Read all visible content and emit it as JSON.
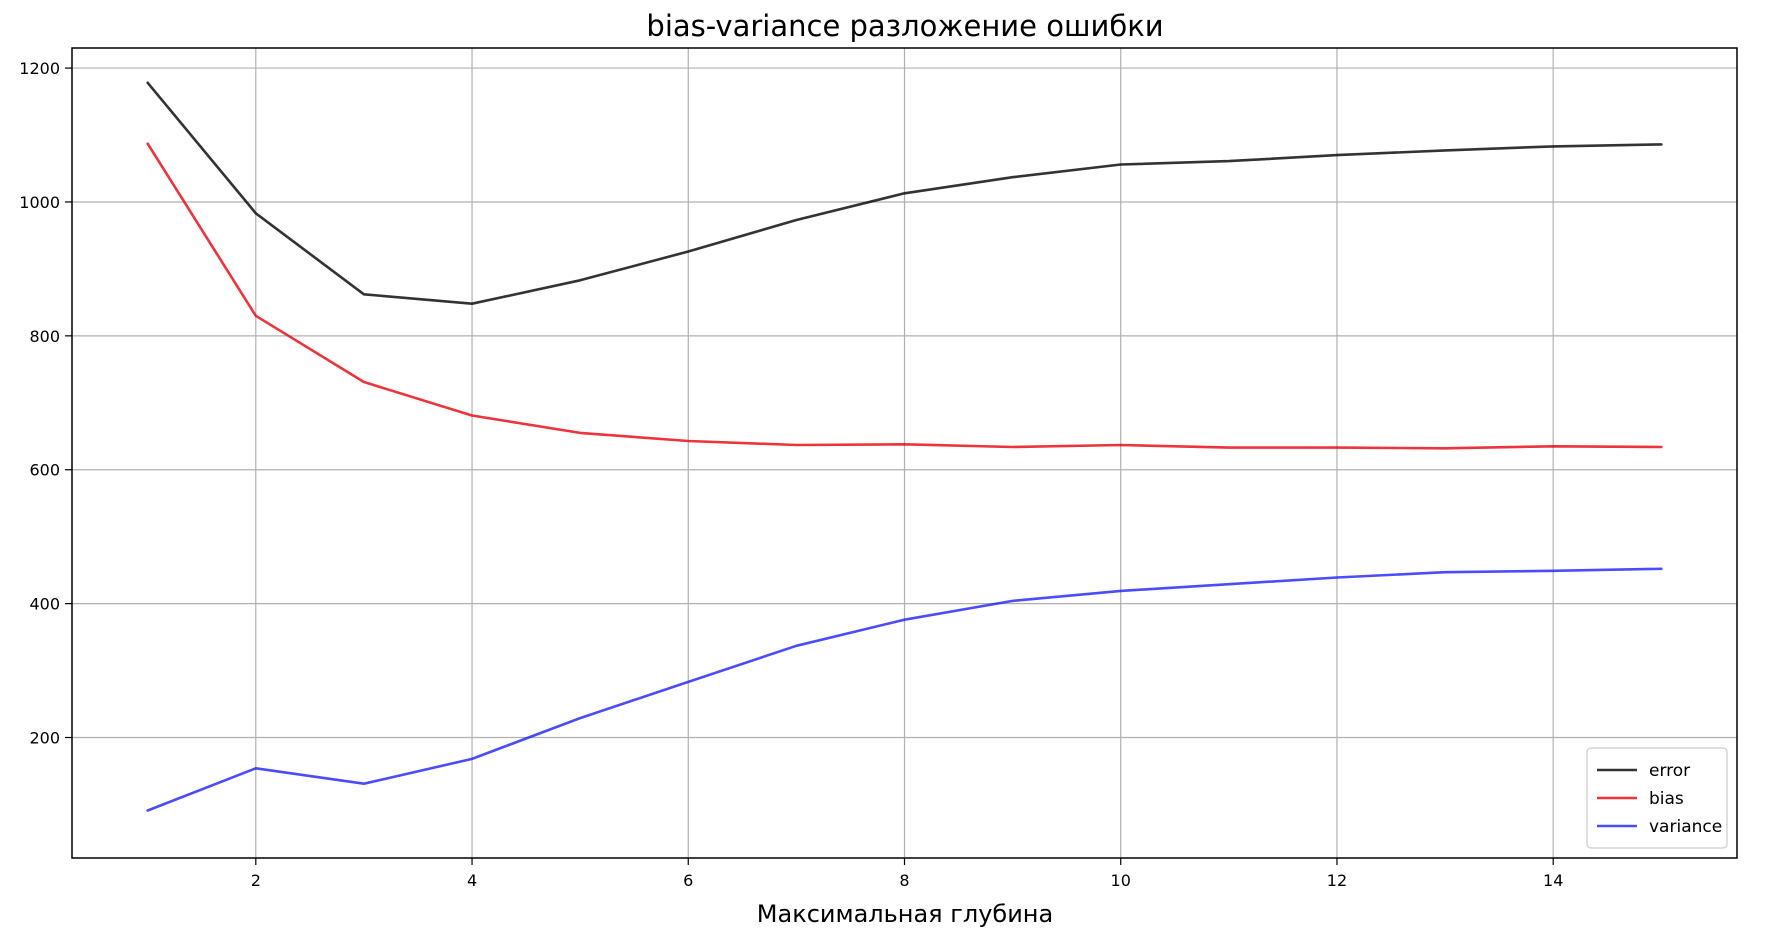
{
  "chart_data": {
    "type": "line",
    "title": "bias-variance разложение ошибки",
    "xlabel": "Максимальная глубина",
    "ylabel": "",
    "xlim": [
      0.3,
      15.7
    ],
    "ylim": [
      20,
      1230
    ],
    "xticks": [
      2,
      4,
      6,
      8,
      10,
      12,
      14
    ],
    "yticks": [
      200,
      400,
      600,
      800,
      1000,
      1200
    ],
    "grid": true,
    "legend_position": "lower-right",
    "x": [
      1,
      2,
      3,
      4,
      5,
      6,
      7,
      8,
      9,
      10,
      11,
      12,
      13,
      14,
      15
    ],
    "series": [
      {
        "name": "error",
        "color": "#000000",
        "values": [
          1178,
          983,
          862,
          848,
          883,
          926,
          973,
          1013,
          1037,
          1056,
          1061,
          1070,
          1077,
          1083,
          1086
        ]
      },
      {
        "name": "bias",
        "color": "#e8000b",
        "values": [
          1087,
          830,
          731,
          681,
          655,
          643,
          637,
          638,
          634,
          637,
          633,
          633,
          632,
          635,
          634
        ]
      },
      {
        "name": "variance",
        "color": "#1f1fff",
        "values": [
          91,
          154,
          131,
          168,
          229,
          283,
          337,
          376,
          404,
          419,
          429,
          439,
          447,
          449,
          452
        ]
      }
    ]
  }
}
